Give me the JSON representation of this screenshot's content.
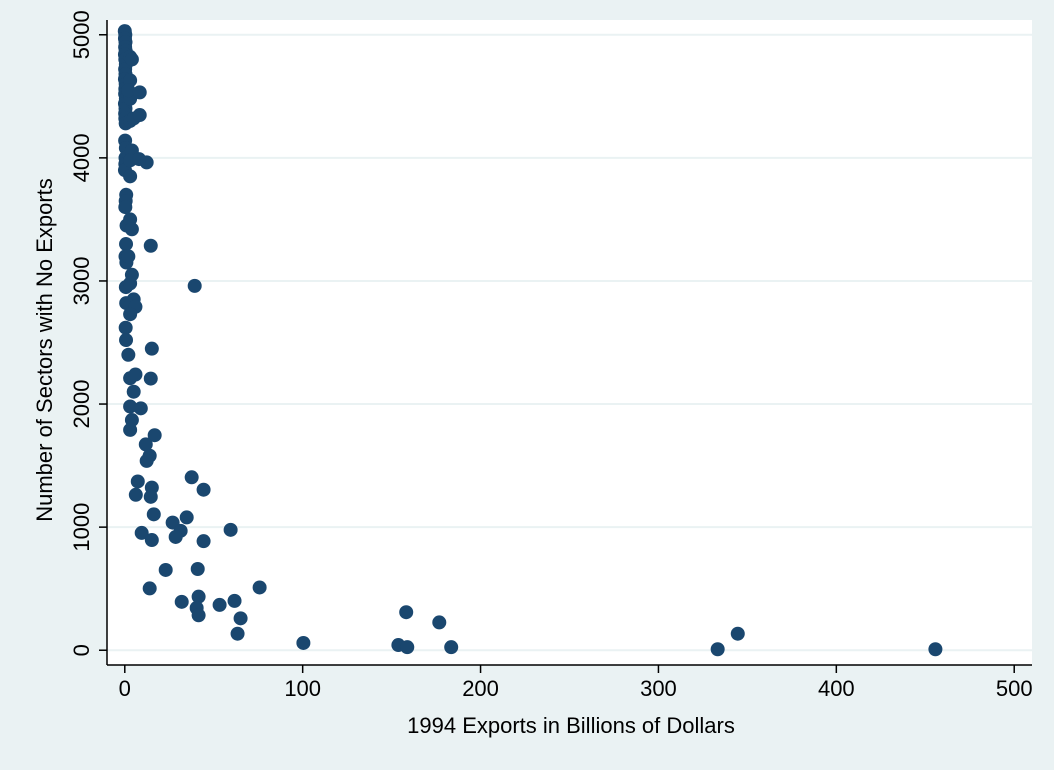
{
  "chart_data": {
    "type": "scatter",
    "x_label": "1994 Exports in Billions of Dollars",
    "y_label": "Number of Sectors with No Exports",
    "color": "#1a476f",
    "grid": true,
    "xlim": [
      -10,
      510
    ],
    "ylim": [
      -120,
      5120
    ],
    "xticks": [
      0,
      100,
      200,
      300,
      400,
      500
    ],
    "yticks": [
      0,
      1000,
      2000,
      3000,
      4000,
      5000
    ],
    "x": [
      0,
      0.3,
      0.1,
      0.4,
      0.2,
      0.5,
      0.1,
      0.3,
      0.6,
      0.2,
      0.4,
      0.1,
      0.5,
      0.3,
      0.2,
      0.6,
      0.1,
      0.4,
      0.2,
      0.3,
      0.5,
      0.2,
      0.6,
      0.4,
      0.3,
      0.1,
      0.8,
      0.5,
      0.3,
      1,
      0.7,
      0.4,
      0.9,
      0.6,
      0.8,
      0.5,
      0.7,
      3,
      4,
      3,
      3,
      2,
      3,
      5,
      4,
      3,
      3,
      3,
      4,
      2,
      4,
      3,
      5,
      3,
      6,
      3,
      2,
      3,
      6,
      5,
      3,
      4,
      3,
      8.4,
      8.4,
      12.3,
      8,
      14.6,
      39.3,
      15.2,
      14.6,
      9,
      16.8,
      11.8,
      14,
      12.3,
      37.6,
      7.3,
      15.2,
      44.3,
      6.2,
      14.6,
      16.3,
      34.8,
      26.9,
      31.4,
      59.5,
      9.5,
      28.6,
      15.2,
      44.3,
      23,
      41,
      14,
      75.8,
      61.7,
      32,
      53.3,
      41.5,
      40.4,
      41.5,
      65.1,
      63.4,
      158.2,
      176.8,
      100.4,
      153.8,
      158.8,
      183.5,
      344.6,
      333.3,
      455.7
    ],
    "values": [
      5030,
      5000,
      4970,
      4940,
      4900,
      4870,
      4840,
      4800,
      4760,
      4720,
      4680,
      4640,
      4600,
      4560,
      4520,
      4480,
      4440,
      4400,
      4360,
      4320,
      4280,
      4140,
      4080,
      4000,
      3950,
      3900,
      3700,
      3650,
      3600,
      3450,
      3300,
      3200,
      3150,
      2950,
      2820,
      2620,
      2520,
      4820,
      4800,
      4630,
      4480,
      4550,
      4300,
      4320,
      4060,
      3980,
      3850,
      3500,
      3420,
      3200,
      3050,
      2980,
      2850,
      2800,
      2790,
      2730,
      2400,
      2210,
      2240,
      2100,
      1980,
      1870,
      1790,
      4532,
      4348,
      3963,
      3990,
      3286,
      2960,
      2450,
      2207,
      1965,
      1747,
      1672,
      1580,
      1538,
      1405,
      1371,
      1321,
      1304,
      1263,
      1246,
      1104,
      1079,
      1037,
      970,
      978,
      953,
      920,
      895,
      886,
      652,
      660,
      502,
      510,
      401,
      393,
      368,
      435,
      343,
      284,
      259,
      134,
      309,
      226,
      59,
      42,
      25,
      25,
      134,
      8,
      8
    ]
  }
}
